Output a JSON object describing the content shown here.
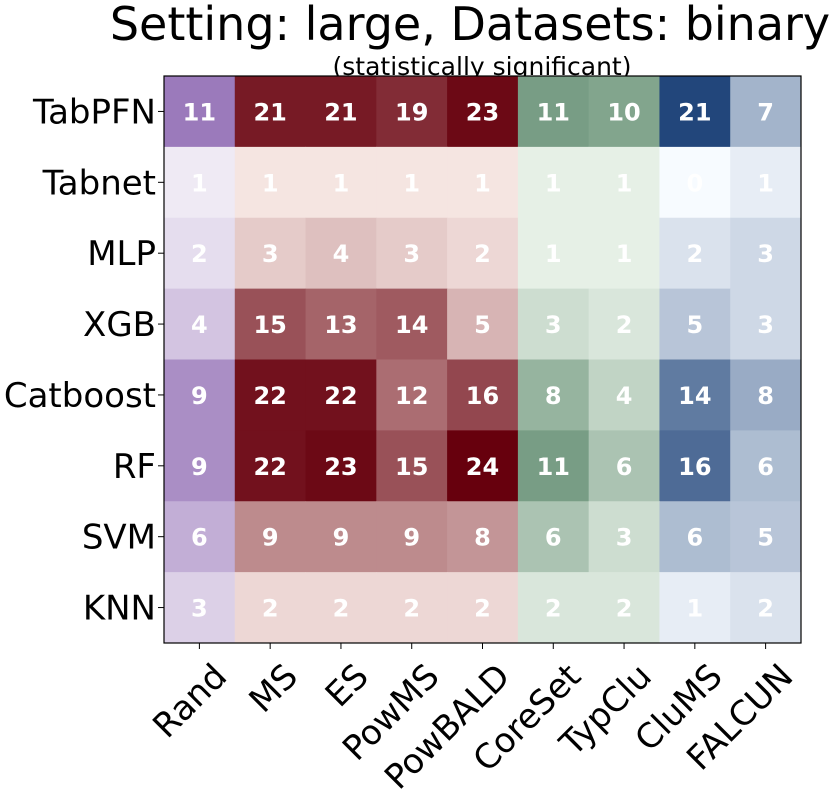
{
  "chart_data": {
    "type": "heatmap",
    "title": "Setting: large, Datasets: binary",
    "subtitle": "(statistically significant)",
    "rows": [
      "TabPFN",
      "Tabnet",
      "MLP",
      "XGB",
      "Catboost",
      "RF",
      "SVM",
      "KNN"
    ],
    "columns": [
      "Rand",
      "MS",
      "ES",
      "PowMS",
      "PowBALD",
      "CoreSet",
      "TypClu",
      "CluMS",
      "FALCUN"
    ],
    "column_colormaps": [
      "purple",
      "red",
      "red",
      "red",
      "red",
      "green",
      "green",
      "blue",
      "blue"
    ],
    "values": [
      [
        11,
        21,
        21,
        19,
        23,
        11,
        10,
        21,
        7
      ],
      [
        1,
        1,
        1,
        1,
        1,
        1,
        1,
        0,
        1
      ],
      [
        2,
        3,
        4,
        3,
        2,
        1,
        1,
        2,
        3
      ],
      [
        4,
        15,
        13,
        14,
        5,
        3,
        2,
        5,
        3
      ],
      [
        9,
        22,
        22,
        12,
        16,
        8,
        4,
        14,
        8
      ],
      [
        9,
        22,
        23,
        15,
        24,
        11,
        6,
        16,
        6
      ],
      [
        6,
        9,
        9,
        9,
        8,
        6,
        3,
        6,
        5
      ],
      [
        3,
        2,
        2,
        2,
        2,
        2,
        2,
        1,
        2
      ]
    ],
    "vmin": 0,
    "vmax": 24,
    "colors": {
      "purple": [
        "#fcfbfd",
        "#3f007d"
      ],
      "red": [
        "#fff5f0",
        "#67000d"
      ],
      "green": [
        "#f7fcf5",
        "#00441b"
      ],
      "blue": [
        "#f7fbff",
        "#08306b"
      ]
    },
    "xlabel": "",
    "ylabel": ""
  }
}
